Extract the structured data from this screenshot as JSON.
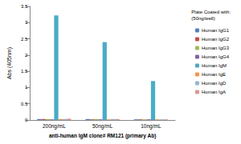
{
  "chart_data": {
    "type": "bar",
    "x_label": "anti-human IgM clone# RM121 (primary Ab)",
    "y_label": "Abs (405nm)",
    "legend_title": "Plate Coated with:\n(50ng/well)",
    "categories": [
      "200ng/mL",
      "50ng/mL",
      "10ng/mL"
    ],
    "series": [
      {
        "name": "Human IgG1",
        "color": "#4f81bd",
        "values": [
          0.03,
          0.03,
          0.02
        ]
      },
      {
        "name": "Human IgG2",
        "color": "#c0504d",
        "values": [
          0.03,
          0.02,
          0.02
        ]
      },
      {
        "name": "Human IgG3",
        "color": "#9bbb59",
        "values": [
          0.03,
          0.03,
          0.02
        ]
      },
      {
        "name": "Human IgG4",
        "color": "#8064a2",
        "values": [
          0.02,
          0.02,
          0.02
        ]
      },
      {
        "name": "Human IgM",
        "color": "#4bacc6",
        "values": [
          3.22,
          2.4,
          1.2
        ]
      },
      {
        "name": "Human IgE",
        "color": "#f79646",
        "values": [
          0.03,
          0.02,
          0.02
        ]
      },
      {
        "name": "Human IgD",
        "color": "#95b3d7",
        "values": [
          0.03,
          0.03,
          0.02
        ]
      },
      {
        "name": "Human IgA",
        "color": "#d99694",
        "values": [
          0.04,
          0.03,
          0.02
        ]
      }
    ],
    "ylim": [
      0,
      3.5
    ],
    "yticks": [
      0,
      0.5,
      1,
      1.5,
      2,
      2.5,
      3,
      3.5
    ],
    "grid": false,
    "legend": "right"
  }
}
